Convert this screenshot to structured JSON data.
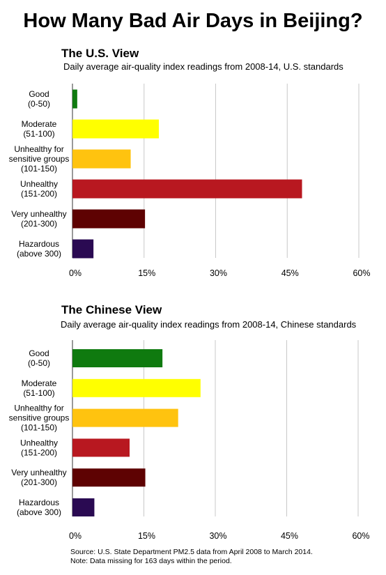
{
  "title": "How Many Bad Air Days in Beijing?",
  "source_lines": [
    "Source: U.S. State Department PM2.5 data from April 2008 to March 2014.",
    "Note: Data missing for 163 days within the period."
  ],
  "chart_data": [
    {
      "type": "bar",
      "orientation": "horizontal",
      "title": "The U.S. View",
      "subtitle": "Daily average air-quality index readings from 2008-14, U.S. standards",
      "categories": [
        [
          "Good",
          "(0-50)"
        ],
        [
          "Moderate",
          "(51-100)"
        ],
        [
          "Unhealthy for",
          "sensitive groups",
          "(101-150)"
        ],
        [
          "Unhealthy",
          "(151-200)"
        ],
        [
          "Very unhealthy",
          "(201-300)"
        ],
        [
          "Hazardous",
          "(above 300)"
        ]
      ],
      "values": [
        1.0,
        18.1,
        12.2,
        48.1,
        15.2,
        4.4
      ],
      "colors": [
        "#0f7a0f",
        "#ffff00",
        "#ffc30f",
        "#b81820",
        "#5e0202",
        "#2a0a52"
      ],
      "xlim": [
        0,
        60
      ],
      "xticks": [
        "0%",
        "15%",
        "30%",
        "45%",
        "60%"
      ],
      "grid": true,
      "xlabel": "",
      "ylabel": ""
    },
    {
      "type": "bar",
      "orientation": "horizontal",
      "title": "The Chinese View",
      "subtitle": "Daily average air-quality index readings from 2008-14, Chinese standards",
      "categories": [
        [
          "Good",
          "(0-50)"
        ],
        [
          "Moderate",
          "(51-100)"
        ],
        [
          "Unhealthy for",
          "sensitive groups",
          "(101-150)"
        ],
        [
          "Unhealthy",
          "(151-200)"
        ],
        [
          "Very unhealthy",
          "(201-300)"
        ],
        [
          "Hazardous",
          "(above 300)"
        ]
      ],
      "values": [
        18.9,
        26.9,
        22.2,
        12.0,
        15.3,
        4.6
      ],
      "colors": [
        "#0f7a0f",
        "#ffff00",
        "#ffc30f",
        "#b81820",
        "#5e0202",
        "#2a0a52"
      ],
      "xlim": [
        0,
        60
      ],
      "xticks": [
        "0%",
        "15%",
        "30%",
        "45%",
        "60%"
      ],
      "grid": true,
      "xlabel": "",
      "ylabel": ""
    }
  ]
}
